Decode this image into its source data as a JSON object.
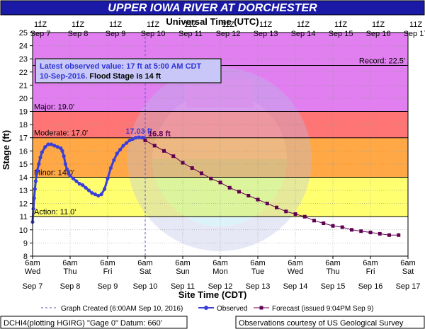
{
  "title": "UPPER IOWA RIVER AT DORCHESTER",
  "top_axis_title": "Universal Time (UTC)",
  "bottom_axis_title": "Site Time (CDT)",
  "y_axis_title": "Stage (ft)",
  "info_box": {
    "line1": "Latest observed value: 17 ft at 5:00 AM CDT",
    "line2_date": "10-Sep-2016.",
    "line2_rest": " Flood Stage is 14 ft"
  },
  "legend": {
    "graph_created": "Graph Created (6:00AM Sep 10, 2016)",
    "observed": "Observed",
    "forecast": "Forecast (issued 9:04PM Sep 9)"
  },
  "footer": {
    "left": "DCHI4(plotting HGIRG) \"Gage 0\" Datum: 660'",
    "right": "Observations courtesy of US Geological Survey"
  },
  "annotations": {
    "peak_observed": "17.03 ft",
    "forecast_start": "16.8 ft"
  },
  "colors": {
    "title_bg": "#1a1aa6",
    "record": "#e17ff0",
    "major": "#ff7575",
    "moderate": "#ffa845",
    "minor": "#ffff70",
    "observed": "#3a3fd8",
    "forecast": "#600050",
    "info_box_bg": "#c9c7f7"
  },
  "chart_data": {
    "type": "line",
    "title": "UPPER IOWA RIVER AT DORCHESTER",
    "ylabel": "Stage (ft)",
    "xlabel": "Site Time (CDT)",
    "ylim": [
      8,
      25
    ],
    "xlim_hours_from_start": [
      0,
      240
    ],
    "yticks": [
      8,
      9,
      10,
      11,
      12,
      13,
      14,
      15,
      16,
      17,
      18,
      19,
      20,
      21,
      22,
      23,
      24,
      25
    ],
    "top_ticks": [
      {
        "hour": 5,
        "l1": "11Z",
        "l2": "Sep 7"
      },
      {
        "hour": 29,
        "l1": "11Z",
        "l2": "Sep 8"
      },
      {
        "hour": 53,
        "l1": "11Z",
        "l2": "Sep 9"
      },
      {
        "hour": 77,
        "l1": "11Z",
        "l2": "Sep 10"
      },
      {
        "hour": 101,
        "l1": "11Z",
        "l2": "Sep 11"
      },
      {
        "hour": 125,
        "l1": "11Z",
        "l2": "Sep 12"
      },
      {
        "hour": 149,
        "l1": "11Z",
        "l2": "Sep 13"
      },
      {
        "hour": 173,
        "l1": "11Z",
        "l2": "Sep 14"
      },
      {
        "hour": 197,
        "l1": "11Z",
        "l2": "Sep 15"
      },
      {
        "hour": 221,
        "l1": "11Z",
        "l2": "Sep 16"
      },
      {
        "hour": 245,
        "l1": "11Z",
        "l2": "Sep 17"
      }
    ],
    "bottom_ticks": [
      {
        "hour": 0,
        "l1": "6am",
        "l2": "Wed",
        "l3": "Sep 7"
      },
      {
        "hour": 24,
        "l1": "6am",
        "l2": "Thu",
        "l3": "Sep 8"
      },
      {
        "hour": 48,
        "l1": "6am",
        "l2": "Fri",
        "l3": "Sep 9"
      },
      {
        "hour": 72,
        "l1": "6am",
        "l2": "Sat",
        "l3": "Sep 10"
      },
      {
        "hour": 96,
        "l1": "6am",
        "l2": "Sun",
        "l3": "Sep 11"
      },
      {
        "hour": 120,
        "l1": "6am",
        "l2": "Mon",
        "l3": "Sep 12"
      },
      {
        "hour": 144,
        "l1": "6am",
        "l2": "Tue",
        "l3": "Sep 13"
      },
      {
        "hour": 168,
        "l1": "6am",
        "l2": "Wed",
        "l3": "Sep 14"
      },
      {
        "hour": 192,
        "l1": "6am",
        "l2": "Thu",
        "l3": "Sep 15"
      },
      {
        "hour": 216,
        "l1": "6am",
        "l2": "Fri",
        "l3": "Sep 16"
      },
      {
        "hour": 240,
        "l1": "6am",
        "l2": "Sat",
        "l3": "Sep 17"
      }
    ],
    "flood_categories": [
      {
        "name": "Action",
        "label": "Action: 11.0'",
        "value": 11.0,
        "upper": 14.0
      },
      {
        "name": "Minor",
        "label": "Minor: 14.0'",
        "value": 14.0,
        "upper": 17.0
      },
      {
        "name": "Moderate",
        "label": "Moderate: 17.0'",
        "value": 17.0,
        "upper": 19.0
      },
      {
        "name": "Major",
        "label": "Major: 19.0'",
        "value": 19.0,
        "upper": 25.0
      },
      {
        "name": "Record",
        "label": "Record: 22.5'",
        "value": 22.5
      }
    ],
    "graph_created_hour": 72,
    "series": [
      {
        "name": "Observed",
        "x": [
          0,
          0.5,
          1,
          1.5,
          2,
          3,
          4,
          5,
          6,
          8,
          10,
          12,
          14,
          16,
          18,
          19,
          20,
          21,
          22,
          23,
          24,
          26,
          28,
          30,
          32,
          34,
          36,
          38,
          40,
          42,
          44,
          46,
          48,
          50,
          52,
          54,
          56,
          58,
          60,
          62,
          64,
          66,
          68,
          70,
          71
        ],
        "values": [
          10.6,
          11.6,
          12.4,
          13.1,
          13.7,
          14.5,
          15.0,
          15.5,
          15.9,
          16.3,
          16.5,
          16.5,
          16.4,
          16.3,
          16.2,
          16.0,
          15.6,
          15.0,
          14.6,
          14.3,
          14.1,
          13.9,
          13.7,
          13.5,
          13.4,
          13.2,
          13.0,
          12.8,
          12.7,
          12.6,
          12.7,
          13.1,
          13.9,
          14.7,
          15.3,
          15.8,
          16.1,
          16.4,
          16.6,
          16.8,
          16.9,
          17.0,
          17.03,
          17.0,
          17.0
        ]
      },
      {
        "name": "Forecast (issued 9:04PM Sep 9)",
        "x": [
          72,
          78,
          84,
          90,
          96,
          102,
          108,
          114,
          120,
          126,
          132,
          138,
          144,
          150,
          156,
          162,
          168,
          174,
          180,
          186,
          192,
          198,
          204,
          210,
          216,
          222,
          228,
          234
        ],
        "values": [
          16.8,
          16.4,
          16.0,
          15.6,
          15.1,
          14.7,
          14.3,
          13.9,
          13.6,
          13.2,
          12.9,
          12.6,
          12.3,
          12.0,
          11.7,
          11.4,
          11.2,
          11.0,
          10.7,
          10.5,
          10.3,
          10.2,
          10.0,
          9.9,
          9.8,
          9.7,
          9.6,
          9.6
        ]
      }
    ]
  }
}
